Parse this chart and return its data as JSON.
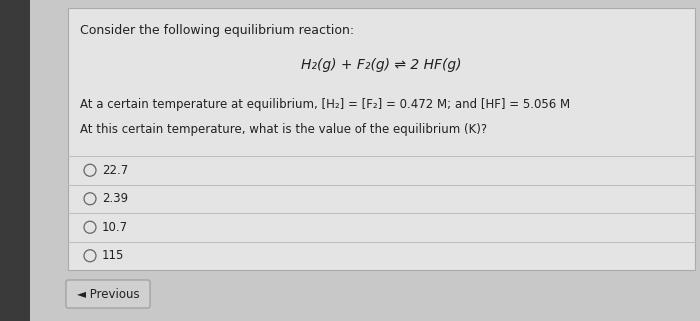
{
  "background_color": "#c8c8c8",
  "card_color": "#e4e4e4",
  "left_strip_color": "#3a3a3a",
  "title_text": "Consider the following equilibrium reaction:",
  "reaction_text": "H₂(g) + F₂(g) ⇌ 2 HF(g)",
  "line1": "At a certain temperature at equilibrium, [H₂] = [F₂] = 0.472 M; and [HF] = 5.056 M",
  "line2": "At this certain temperature, what is the value of the equilibrium (K)?",
  "choices": [
    "22.7",
    "2.39",
    "10.7",
    "115"
  ],
  "prev_button_text": "◄ Previous",
  "card_font_color": "#222222",
  "sep_color": "#bbbbbb",
  "circle_color": "#666666",
  "choice_font_size": 8.5,
  "title_font_size": 9,
  "reaction_font_size": 10,
  "body_font_size": 8.5,
  "prev_font_size": 8.5
}
